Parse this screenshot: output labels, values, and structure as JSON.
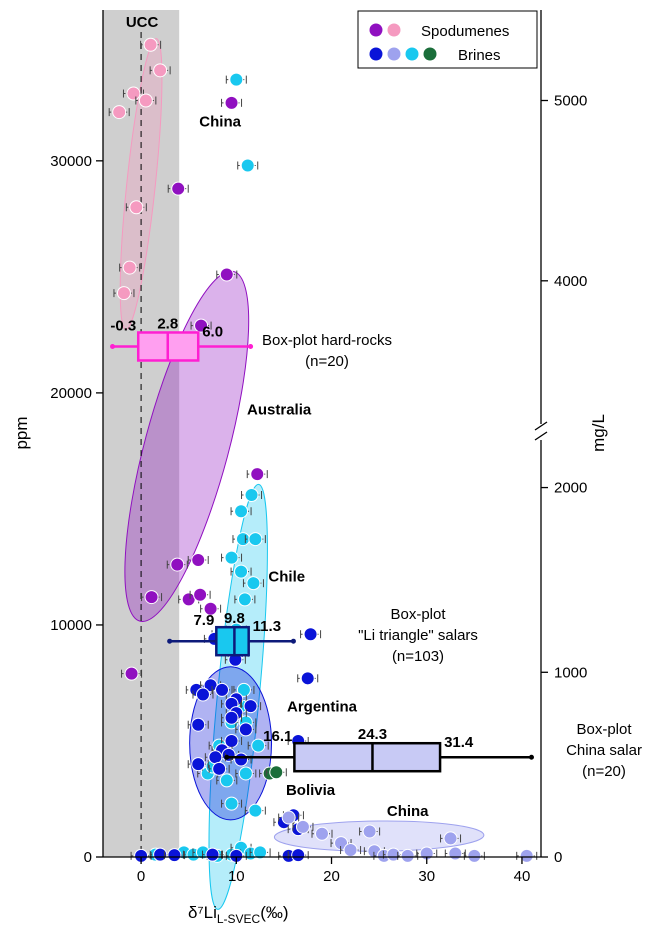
{
  "chart_data": {
    "type": "scatter",
    "x_axis": {
      "label": "δ⁷Li",
      "label_sub": "L-SVEC",
      "label_unit": "(‰)",
      "range": [
        -4,
        42
      ],
      "ticks": [
        0,
        10,
        20,
        30,
        40
      ]
    },
    "y_axis_left": {
      "label": "ppm",
      "range": [
        0,
        36500
      ],
      "ticks": [
        0,
        10000,
        20000,
        30000
      ]
    },
    "y_axis_right": {
      "label": "mg/L",
      "ticks": [
        {
          "label": "0",
          "ppm": 0
        },
        {
          "label": "1000",
          "ppm": 7960
        },
        {
          "label": "2000",
          "ppm": 15920
        },
        {
          "label": "4000",
          "ppm": 24830
        },
        {
          "label": "5000",
          "ppm": 32600
        }
      ]
    },
    "ucc": {
      "label": "UCC",
      "x_range": [
        -4,
        4
      ]
    },
    "legend": {
      "position": "top-right",
      "entries": [
        {
          "label": "Spodumenes",
          "colors": [
            "#9010c0",
            "#f59ac0"
          ]
        },
        {
          "label": "Brines",
          "colors": [
            "#0a14d8",
            "#9ea2ee",
            "#19c8ef",
            "#1b6e3a"
          ]
        }
      ]
    },
    "region_labels": [
      {
        "text": "China",
        "color": "#f59ac0",
        "x": 8.3,
        "y": 31600
      },
      {
        "text": "Australia",
        "color": "#9010c0",
        "x": 14.5,
        "y": 19200
      },
      {
        "text": "Chile",
        "color": "#19c8ef",
        "x": 15.3,
        "y": 12000
      },
      {
        "text": "Argentina",
        "color": "#0a14d8",
        "x": 19,
        "y": 6400
      },
      {
        "text": "Bolivia",
        "color": "#1b6e3a",
        "x": 17.8,
        "y": 2800
      },
      {
        "text": "China",
        "color": "#9ea2ee",
        "x": 28,
        "y": 1900
      }
    ],
    "boxplots": [
      {
        "label_lines": [
          "Box-plot hard-rocks",
          "(n=20)"
        ],
        "color": "#ff1fd2",
        "fill": "#ff9ff0",
        "whisker": [
          -3,
          11.5
        ],
        "q1": -0.3,
        "median": 2.8,
        "q3": 6.0,
        "y": 22000,
        "value_labels": [
          "-0.3",
          "2.8",
          "6.0"
        ]
      },
      {
        "label_lines": [
          "Box-plot",
          "\"Li triangle\" salars",
          "(n=103)"
        ],
        "color": "#0d1a7a",
        "fill": "#19c8ef",
        "whisker": [
          3,
          16
        ],
        "q1": 7.9,
        "median": 9.8,
        "q3": 11.3,
        "y": 9300,
        "value_labels": [
          "7.9",
          "9.8",
          "11.3"
        ]
      },
      {
        "label_lines": [
          "Box-plot",
          "China salar",
          "(n=20)"
        ],
        "color": "#000000",
        "fill": "#c8caf5",
        "whisker": [
          9,
          41
        ],
        "q1": 16.1,
        "median": 24.3,
        "q3": 31.4,
        "y": 4300,
        "value_labels": [
          "16.1",
          "24.3",
          "31.4"
        ]
      }
    ],
    "ellipses": [
      {
        "group": "China spodumene",
        "cx": 0,
        "cy": 29000,
        "rx": 1.5,
        "ry": 6300,
        "angle": 0.6,
        "fill": "#f59ac0"
      },
      {
        "group": "Australia",
        "cx": 4.8,
        "cy": 17700,
        "rx": 4.4,
        "ry": 7800,
        "angle": 1.5,
        "fill": "#9010c0"
      },
      {
        "group": "Chile",
        "cx": 10.2,
        "cy": 6900,
        "rx": 2.2,
        "ry": 9200,
        "angle": 0.55,
        "fill": "#19c8ef"
      },
      {
        "group": "Argentina",
        "cx": 9.4,
        "cy": 4900,
        "rx": 4.3,
        "ry": 3300,
        "angle": 0,
        "fill": "#0a14d8"
      },
      {
        "group": "China salar",
        "cx": 25,
        "cy": 900,
        "rx": 11,
        "ry": 650,
        "angle": -0.055,
        "fill": "#9ea2ee"
      }
    ],
    "series": [
      {
        "name": "Spodumenes (China)",
        "color": "#f59ac0",
        "points": [
          [
            1,
            35000
          ],
          [
            2,
            33900
          ],
          [
            -0.8,
            32900
          ],
          [
            0.5,
            32600
          ],
          [
            -2.3,
            32100
          ],
          [
            -0.5,
            28000
          ],
          [
            -1.2,
            25400
          ],
          [
            -1.8,
            24300
          ]
        ]
      },
      {
        "name": "Spodumenes (Australia)",
        "color": "#9010c0",
        "points": [
          [
            9.5,
            32500
          ],
          [
            3.9,
            28800
          ],
          [
            9,
            25100
          ],
          [
            6.3,
            22900
          ],
          [
            12.2,
            16500
          ],
          [
            3.8,
            12600
          ],
          [
            6,
            12800
          ],
          [
            1.1,
            11200
          ],
          [
            5,
            11100
          ],
          [
            6.2,
            11300
          ],
          [
            7.3,
            10700
          ],
          [
            -1,
            7900
          ]
        ]
      },
      {
        "name": "Brines (Chile)",
        "color": "#19c8ef",
        "points": [
          [
            10,
            33500
          ],
          [
            11.2,
            29800
          ],
          [
            11.6,
            15600
          ],
          [
            10.5,
            14900
          ],
          [
            10.7,
            13700
          ],
          [
            12,
            13700
          ],
          [
            9.5,
            12900
          ],
          [
            10.5,
            12300
          ],
          [
            11.8,
            11800
          ],
          [
            10.9,
            11100
          ],
          [
            10,
            9800
          ],
          [
            8.5,
            9600
          ],
          [
            10.8,
            7200
          ],
          [
            10.5,
            6500
          ],
          [
            9.5,
            5800
          ],
          [
            11,
            5800
          ],
          [
            8.2,
            4800
          ],
          [
            12.3,
            4800
          ],
          [
            7,
            3600
          ],
          [
            7.5,
            3900
          ],
          [
            9,
            3300
          ],
          [
            11,
            3600
          ],
          [
            9.5,
            2300
          ],
          [
            12,
            2000
          ],
          [
            1.5,
            100
          ],
          [
            4.5,
            200
          ],
          [
            5.5,
            100
          ],
          [
            6.5,
            200
          ],
          [
            8,
            50
          ],
          [
            9.5,
            100
          ],
          [
            10.5,
            400
          ],
          [
            11.5,
            150
          ],
          [
            12.5,
            200
          ]
        ]
      },
      {
        "name": "Brines (Argentina)",
        "color": "#0a14d8",
        "points": [
          [
            17.8,
            9600
          ],
          [
            7.7,
            9400
          ],
          [
            10.2,
            8800
          ],
          [
            9.9,
            8500
          ],
          [
            17.5,
            7700
          ],
          [
            5.8,
            7200
          ],
          [
            7.3,
            7400
          ],
          [
            8.5,
            7200
          ],
          [
            6.5,
            7000
          ],
          [
            10,
            6800
          ],
          [
            9.5,
            6600
          ],
          [
            11.5,
            6500
          ],
          [
            10,
            6200
          ],
          [
            9.5,
            6000
          ],
          [
            6,
            5700
          ],
          [
            11,
            5500
          ],
          [
            9.5,
            5000
          ],
          [
            16.5,
            5000
          ],
          [
            8.5,
            4600
          ],
          [
            9.2,
            4400
          ],
          [
            10.5,
            4200
          ],
          [
            6,
            4000
          ],
          [
            7.8,
            4300
          ],
          [
            8.2,
            3800
          ],
          [
            16,
            1800
          ],
          [
            15,
            1500
          ],
          [
            16.5,
            1200
          ],
          [
            0,
            50
          ],
          [
            2,
            100
          ],
          [
            3.5,
            80
          ],
          [
            7.5,
            100
          ],
          [
            10,
            50
          ],
          [
            15.5,
            50
          ],
          [
            16.5,
            80
          ]
        ]
      },
      {
        "name": "Brines (China)",
        "color": "#9ea2ee",
        "points": [
          [
            15.5,
            1700
          ],
          [
            19,
            1000
          ],
          [
            17,
            1300
          ],
          [
            24,
            1100
          ],
          [
            21,
            600
          ],
          [
            22,
            300
          ],
          [
            24.5,
            250
          ],
          [
            25.5,
            50
          ],
          [
            26.5,
            100
          ],
          [
            28,
            50
          ],
          [
            30,
            150
          ],
          [
            32.5,
            800
          ],
          [
            33,
            150
          ],
          [
            35,
            50
          ],
          [
            40.5,
            50
          ]
        ]
      },
      {
        "name": "Brines (Bolivia)",
        "color": "#1b6e3a",
        "points": [
          [
            13.5,
            3600
          ],
          [
            14.2,
            3650
          ]
        ]
      }
    ]
  }
}
